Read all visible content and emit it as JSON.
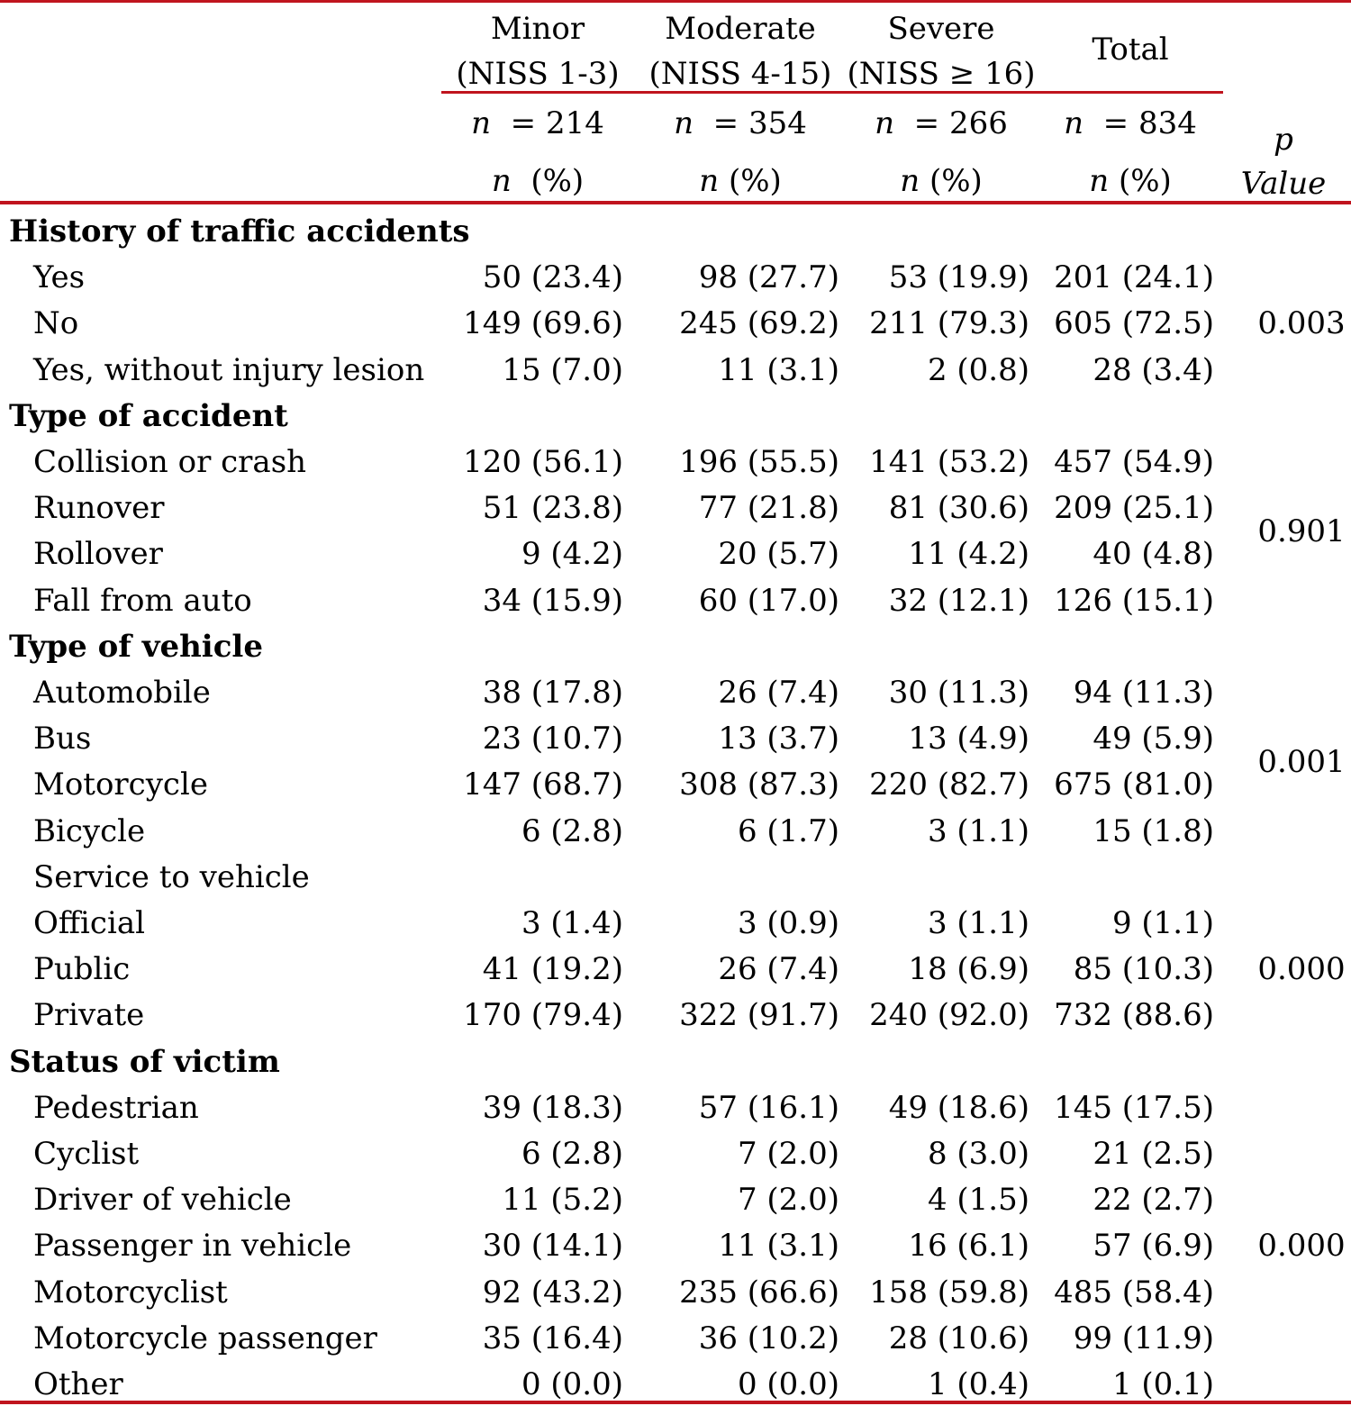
{
  "header": {
    "columns": [
      {
        "name_line1": "Minor",
        "name_line2": "(NISS 1-3)",
        "n": "= 214",
        "pct": "(%)"
      },
      {
        "name_line1": "Moderate",
        "name_line2": "(NISS 4-15)",
        "n": "= 354",
        "pct": "(%)"
      },
      {
        "name_line1": "Severe",
        "name_line2": "(NISS ≥ 16)",
        "n": "= 266",
        "pct": "(%)"
      },
      {
        "name_line1": "Total",
        "name_line2": "",
        "n": "= 834",
        "pct": "(%)"
      }
    ],
    "n_symbol": "n",
    "p_symbol": "p",
    "p_value_label": "Value"
  },
  "sections": [
    {
      "title": "History of traffic accidents",
      "p_value": "0.003",
      "rows": [
        {
          "label": "Yes",
          "values": [
            "50 (23.4)",
            "98 (27.7)",
            "53 (19.9)",
            "201 (24.1)"
          ]
        },
        {
          "label": "No",
          "values": [
            "149 (69.6)",
            "245 (69.2)",
            "211 (79.3)",
            "605 (72.5)"
          ]
        },
        {
          "label": "Yes, without injury lesion",
          "values": [
            "15 (7.0)",
            "11 (3.1)",
            "2 (0.8)",
            "28 (3.4)"
          ]
        }
      ]
    },
    {
      "title": "Type of accident",
      "p_value": "0.901",
      "rows": [
        {
          "label": "Collision   or crash",
          "values": [
            "120 (56.1)",
            "196 (55.5)",
            "141 (53.2)",
            "457 (54.9)"
          ]
        },
        {
          "label": "Runover",
          "values": [
            "51 (23.8)",
            "77 (21.8)",
            "81 (30.6)",
            "209 (25.1)"
          ]
        },
        {
          "label": "Rollover",
          "values": [
            "9 (4.2)",
            "20 (5.7)",
            "11 (4.2)",
            "40 (4.8)"
          ]
        },
        {
          "label": "Fall from auto",
          "values": [
            "34 (15.9)",
            "60 (17.0)",
            "32 (12.1)",
            "126 (15.1)"
          ]
        }
      ]
    },
    {
      "title": "Type of vehicle",
      "p_value": "0.001",
      "rows": [
        {
          "label": "Automobile",
          "values": [
            "38 (17.8)",
            "26 (7.4)",
            "30 (11.3)",
            "94 (11.3)"
          ]
        },
        {
          "label": "Bus",
          "values": [
            "23 (10.7)",
            "13 (3.7)",
            "13 (4.9)",
            "49 (5.9)"
          ]
        },
        {
          "label": "Motorcycle",
          "values": [
            "147 (68.7)",
            "308 (87.3)",
            "220 (82.7)",
            "675 (81.0)"
          ]
        },
        {
          "label": "Bicycle",
          "values": [
            "6 (2.8)",
            "6 (1.7)",
            "3 (1.1)",
            "15 (1.8)"
          ]
        }
      ]
    },
    {
      "title": "",
      "subtitle": "Service to vehicle",
      "p_value": "0.000",
      "rows": [
        {
          "label": "Official",
          "values": [
            "3 (1.4)",
            "3 (0.9)",
            "3 (1.1)",
            "9 (1.1)"
          ]
        },
        {
          "label": "Public",
          "values": [
            "41 (19.2)",
            "26 (7.4)",
            "18 (6.9)",
            "85 (10.3)"
          ]
        },
        {
          "label": "Private",
          "values": [
            "170 (79.4)",
            "322 (91.7)",
            "240 (92.0)",
            "732 (88.6)"
          ]
        }
      ]
    },
    {
      "title": "Status  of victim",
      "p_value": "0.000",
      "rows": [
        {
          "label": "Pedestrian",
          "values": [
            "39 (18.3)",
            "57 (16.1)",
            "49 (18.6)",
            "145 (17.5)"
          ]
        },
        {
          "label": "Cyclist",
          "values": [
            "6 (2.8)",
            "7 (2.0)",
            "8 (3.0)",
            "21 (2.5)"
          ]
        },
        {
          "label": "Driver of vehicle",
          "values": [
            "11 (5.2)",
            "7 (2.0)",
            "4 (1.5)",
            "22 (2.7)"
          ]
        },
        {
          "label": "Passenger in vehicle",
          "values": [
            "30 (14.1)",
            "11 (3.1)",
            "16 (6.1)",
            "57 (6.9)"
          ]
        },
        {
          "label": "Motorcyclist",
          "values": [
            "92 (43.2)",
            "235 (66.6)",
            "158 (59.8)",
            "485 (58.4)"
          ]
        },
        {
          "label": "Motorcycle passenger",
          "values": [
            "35 (16.4)",
            "36 (10.2)",
            "28 (10.6)",
            "99 (11.9)"
          ]
        },
        {
          "label": "Other",
          "values": [
            "0 (0.0)",
            "0 (0.0)",
            "1 (0.4)",
            "1 (0.1)"
          ]
        }
      ]
    }
  ]
}
